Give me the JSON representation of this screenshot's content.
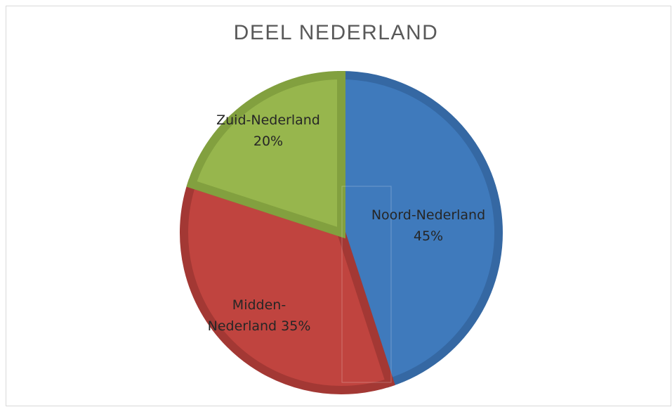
{
  "chart_data": {
    "type": "pie",
    "title": "DEEL NEDERLAND",
    "slices": [
      {
        "name": "Noord-Nederland",
        "value": 45,
        "label_lines": [
          "Noord-Nederland",
          "45%"
        ],
        "color": "#3F7ABC",
        "edge_color": "#3568A3"
      },
      {
        "name": "Midden-Nederland",
        "value": 35,
        "label_lines": [
          "Midden-",
          "Nederland 35%"
        ],
        "color": "#C0443F",
        "edge_color": "#A33834"
      },
      {
        "name": "Zuid-Nederland",
        "value": 20,
        "label_lines": [
          "Zuid-Nederland",
          "20%"
        ],
        "color": "#97B64D",
        "edge_color": "#82A03F"
      }
    ],
    "start_angle": "12 o'clock",
    "direction": "clockwise",
    "legend": "none",
    "data_labels": "inside slices"
  }
}
